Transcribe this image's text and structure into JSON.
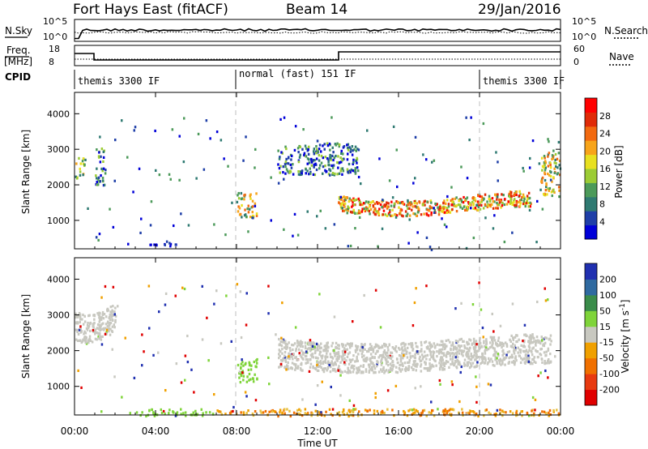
{
  "header": {
    "station": "Fort Hays East (fitACF)",
    "beam": "Beam 14",
    "date": "29/Jan/2016"
  },
  "summary_panels": {
    "noise": {
      "left_label": "N.Sky",
      "right_label": "N.Search",
      "left_ticks": [
        "10^5",
        "10^0"
      ],
      "right_ticks": [
        "10^5",
        "10^0"
      ]
    },
    "freq": {
      "left_label": "Freq.",
      "left_unit": "[MHz]",
      "left_ticks": [
        "18",
        "8"
      ],
      "right_label": "Nave",
      "right_ticks": [
        "60",
        "0"
      ]
    },
    "cpid": {
      "label": "CPID",
      "segments": [
        {
          "start_hour": 0,
          "end_hour": 8,
          "text": "themis 3300 IF"
        },
        {
          "start_hour": 8,
          "end_hour": 20,
          "text": "normal (fast) 151 IF"
        },
        {
          "start_hour": 20,
          "end_hour": 24,
          "text": "themis 3300 IF"
        }
      ]
    }
  },
  "chart_data": [
    {
      "type": "heatmap",
      "name": "power",
      "ylabel": "Slant Range [km]",
      "yticks": [
        1000,
        2000,
        3000,
        4000
      ],
      "ylim": [
        200,
        4600
      ],
      "xlim": [
        0,
        24
      ],
      "colorbar": {
        "label": "Power [dB]",
        "ticks": [
          "4",
          "8",
          "12",
          "16",
          "20",
          "24",
          "28"
        ],
        "colors": [
          "#0000d8",
          "#1f3fa8",
          "#2f7a72",
          "#4c9a5a",
          "#9ccc35",
          "#e8e020",
          "#f7a41a",
          "#f26a10",
          "#e02b08",
          "#ff0000"
        ]
      },
      "dashed_lines_hour": [
        8,
        20
      ],
      "echo_regions": [
        {
          "t0": 13.0,
          "t1": 22.5,
          "r0": 1100,
          "r1": 1900,
          "level": "high"
        },
        {
          "t0": 8.0,
          "t1": 9.0,
          "r0": 1100,
          "r1": 1800,
          "level": "medium"
        },
        {
          "t0": 0.0,
          "t1": 0.5,
          "r0": 2200,
          "r1": 2800,
          "level": "medium"
        },
        {
          "t0": 1.0,
          "t1": 1.5,
          "r0": 2000,
          "r1": 3100,
          "level": "low"
        },
        {
          "t0": 3.0,
          "t1": 5.0,
          "r0": 300,
          "r1": 400,
          "level": "low"
        },
        {
          "t0": 10.0,
          "t1": 14.0,
          "r0": 2300,
          "r1": 3200,
          "level": "low"
        },
        {
          "t0": 23.0,
          "t1": 24.0,
          "r0": 1700,
          "r1": 3000,
          "level": "medium"
        }
      ]
    },
    {
      "type": "heatmap",
      "name": "velocity",
      "xlabel": "Time UT",
      "ylabel": "Slant Range [km]",
      "yticks": [
        1000,
        2000,
        3000,
        4000
      ],
      "ylim": [
        200,
        4600
      ],
      "xlim": [
        0,
        24
      ],
      "xticks": [
        "00:00",
        "04:00",
        "08:00",
        "12:00",
        "16:00",
        "20:00",
        "00:00"
      ],
      "colorbar": {
        "label": "Velocity [m s-1]",
        "ticks": [
          "200",
          "100",
          "50",
          "15",
          "-15",
          "-50",
          "-100",
          "-200"
        ],
        "colors": [
          "#2030b0",
          "#2f6aa0",
          "#3a8c4a",
          "#7fd43a",
          "#c8c8c0",
          "#f0a000",
          "#f07000",
          "#e83a10",
          "#e00000"
        ]
      },
      "dashed_lines_hour": [
        8,
        20
      ],
      "echo_regions": [
        {
          "t0": 10.0,
          "t1": 23.5,
          "r0": 1200,
          "r1": 2700,
          "velocity": "ground scatter"
        },
        {
          "t0": 8.0,
          "t1": 9.0,
          "r0": 1100,
          "r1": 1800,
          "velocity": "15-50"
        },
        {
          "t0": 0.0,
          "t1": 2.0,
          "r0": 2000,
          "r1": 3500,
          "velocity": "ground scatter"
        },
        {
          "t0": 3.0,
          "t1": 7.0,
          "r0": 200,
          "r1": 400,
          "velocity": "15-50"
        },
        {
          "t0": 7.0,
          "t1": 24.0,
          "r0": 200,
          "r1": 400,
          "velocity": "-15 to -50"
        }
      ]
    }
  ],
  "styles": {
    "noise_trace_color": "#000000",
    "dashed_line_color": "#bfbfbf",
    "ground_scatter_color": "#c8c8c0"
  }
}
